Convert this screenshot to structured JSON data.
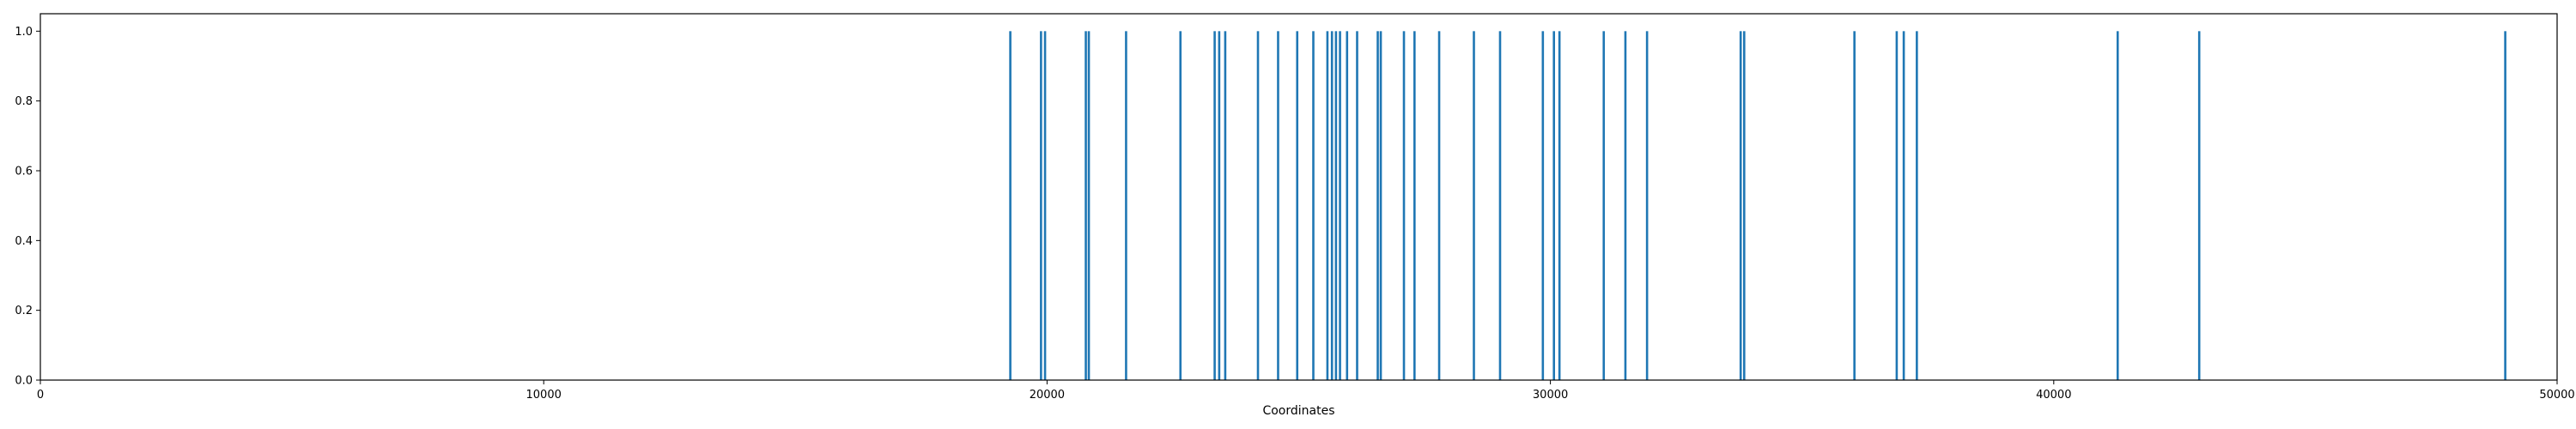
{
  "chart_data": {
    "type": "bar",
    "title": "",
    "xlabel": "Coordinates",
    "ylabel": "",
    "xlim": [
      0,
      50000
    ],
    "ylim": [
      0,
      1.05
    ],
    "xticks": [
      0,
      10000,
      20000,
      30000,
      40000,
      50000
    ],
    "xtick_labels": [
      "0",
      "10000",
      "20000",
      "30000",
      "40000",
      "50000"
    ],
    "yticks": [
      0.0,
      0.2,
      0.4,
      0.6,
      0.8,
      1.0
    ],
    "ytick_labels": [
      "0.0",
      "0.2",
      "0.4",
      "0.6",
      "0.8",
      "1.0"
    ],
    "grid": false,
    "legend": false,
    "series": [
      {
        "color": "#1f77b4",
        "x": [
          19270,
          19880,
          19960,
          20770,
          20830,
          21570,
          22650,
          23330,
          23420,
          23540,
          24190,
          24590,
          24970,
          25290,
          25570,
          25660,
          25740,
          25820,
          25960,
          26160,
          26570,
          26630,
          27090,
          27300,
          27790,
          28480,
          29000,
          29850,
          30070,
          30180,
          31060,
          31490,
          31920,
          33780,
          33850,
          36040,
          36880,
          37020,
          37280,
          41270,
          42890,
          48970
        ],
        "values": [
          1,
          1,
          1,
          1,
          1,
          1,
          1,
          1,
          1,
          1,
          1,
          1,
          1,
          1,
          1,
          1,
          1,
          1,
          1,
          1,
          1,
          1,
          1,
          1,
          1,
          1,
          1,
          1,
          1,
          1,
          1,
          1,
          1,
          1,
          1,
          1,
          1,
          1,
          1,
          1,
          1,
          1
        ]
      }
    ]
  }
}
